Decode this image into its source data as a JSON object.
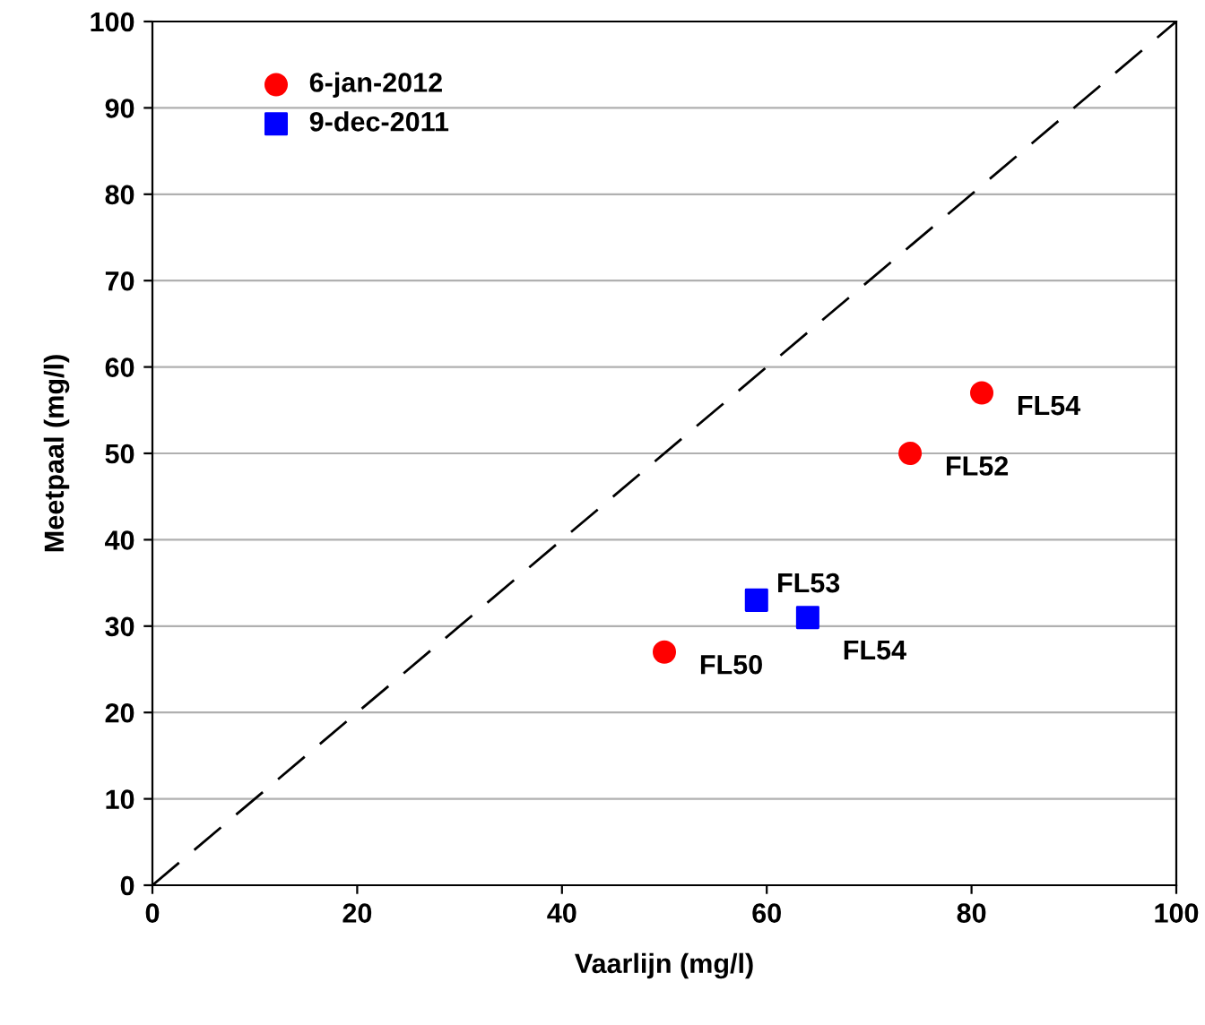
{
  "chart_data": {
    "type": "scatter",
    "xlabel": "Vaarlijn (mg/l)",
    "ylabel": "Meetpaal (mg/l)",
    "xlim": [
      0,
      100
    ],
    "xticks": [
      0,
      20,
      40,
      60,
      80,
      100
    ],
    "ylim": [
      0,
      100
    ],
    "yticks": [
      0,
      10,
      20,
      30,
      40,
      50,
      60,
      70,
      80,
      90,
      100
    ],
    "grid": "y",
    "legend": "top left",
    "series": [
      {
        "name": "6-jan-2012",
        "color": "#ff0000",
        "marker": "circle",
        "x": [
          50,
          74,
          81
        ],
        "values": [
          27,
          50,
          57
        ]
      },
      {
        "name": "9-dec-2011",
        "color": "#0000ff",
        "marker": "square",
        "x": [
          59,
          64
        ],
        "values": [
          33,
          31
        ]
      },
      {
        "type": "line",
        "color": "#000000",
        "line_style": "dashed",
        "marker": "none",
        "x": [
          0,
          100
        ],
        "values": [
          0,
          100
        ]
      }
    ],
    "annotations": [
      {
        "text": "FL50",
        "x": 50,
        "y": 27
      },
      {
        "text": "FL52",
        "x": 74,
        "y": 50
      },
      {
        "text": "FL54",
        "x": 81,
        "y": 57
      },
      {
        "text": "FL53",
        "x": 59,
        "y": 33
      },
      {
        "text": "FL54",
        "x": 64,
        "y": 31
      }
    ]
  }
}
